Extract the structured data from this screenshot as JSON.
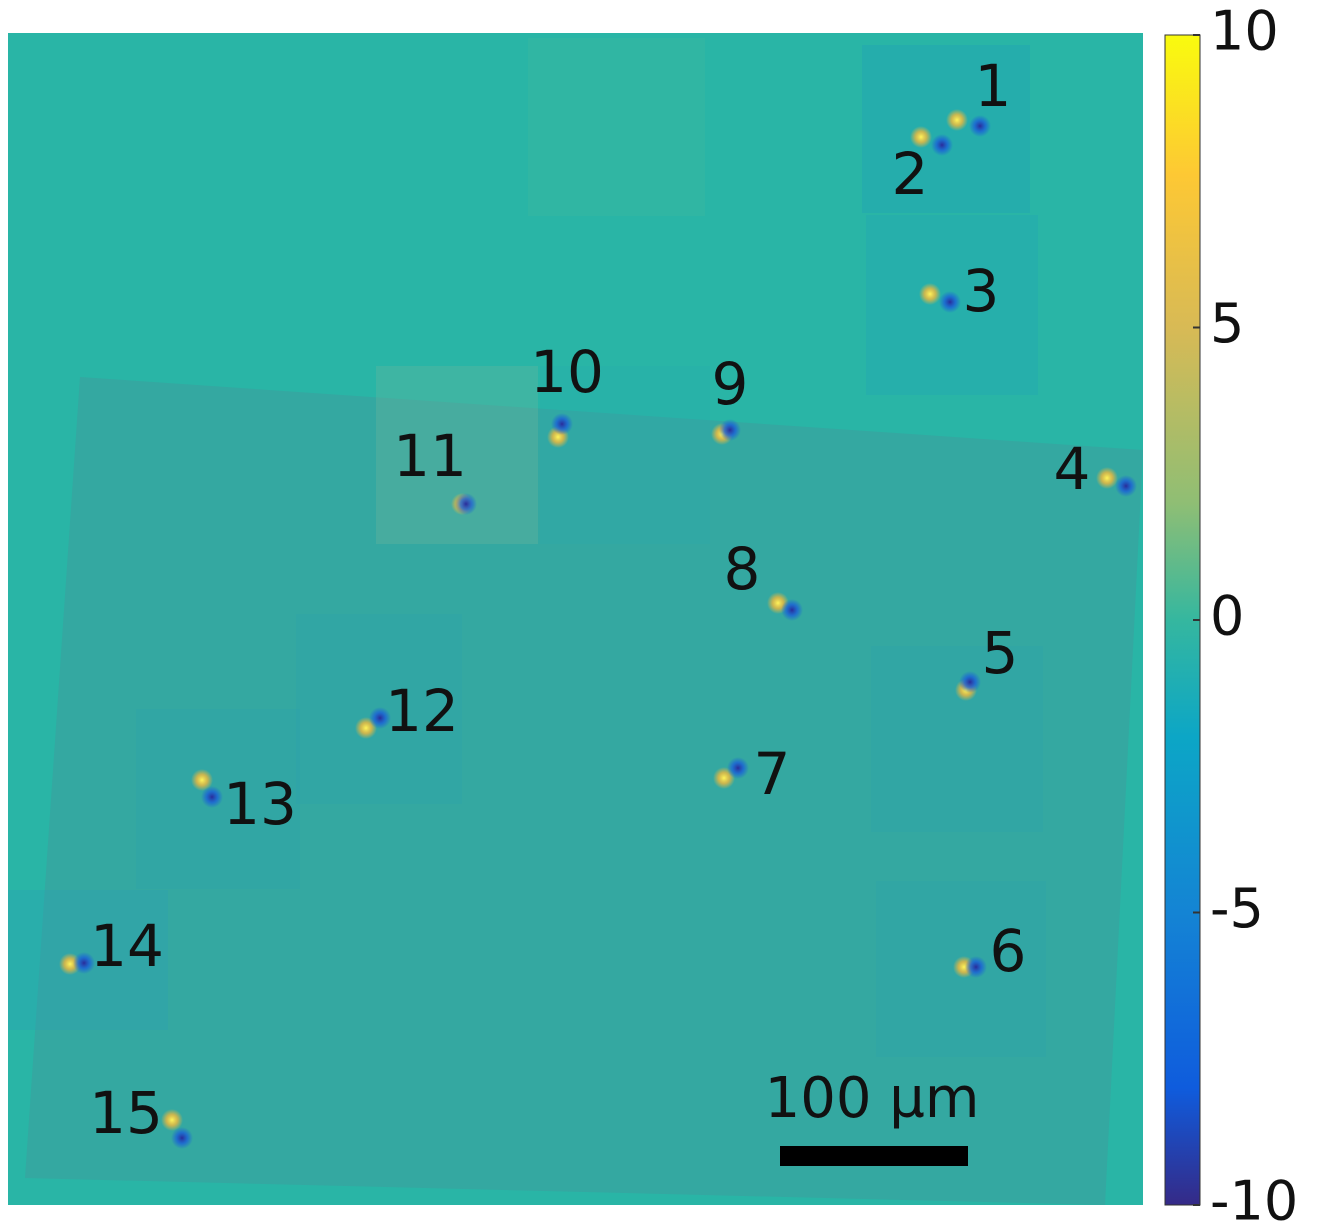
{
  "markers": [
    "1",
    "2",
    "3",
    "4",
    "5",
    "6",
    "7",
    "8",
    "9",
    "10",
    "11",
    "12",
    "13",
    "14",
    "15"
  ],
  "colorbar": {
    "lim": [
      -10,
      10
    ],
    "ticks": [
      10,
      5,
      0,
      -5,
      -10
    ]
  },
  "scale_bar": "100 µm"
}
